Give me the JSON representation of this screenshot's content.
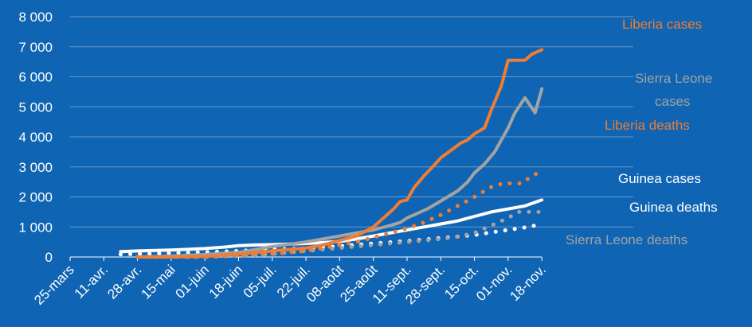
{
  "colors": {
    "background": "#0f64b3",
    "liberia_cases": "#ef7d33",
    "liberia_deaths": "#ef7d33",
    "sierra_leone_cases": "#a3a3a3",
    "sierra_leone_deaths": "#a3a3a3",
    "guinea_cases": "#ffffff",
    "guinea_deaths": "#ffffff",
    "grid": "#6b98c8",
    "text": "#ffffff"
  },
  "chart_data": {
    "type": "line",
    "title": "",
    "xlabel": "",
    "ylabel": "",
    "ylim": [
      0,
      8000
    ],
    "yticks": [
      0,
      1000,
      2000,
      3000,
      4000,
      5000,
      6000,
      7000,
      8000
    ],
    "ytick_labels": [
      "0",
      "1 000",
      "2 000",
      "3 000",
      "4 000",
      "5 000",
      "6 000",
      "7 000",
      "8 000"
    ],
    "x_categories": [
      "25-mars",
      "11-avr.",
      "28-avr.",
      "15-mai",
      "01-juin",
      "18-juin",
      "05-juil.",
      "22-juil.",
      "08-août",
      "25-août",
      "11-sept.",
      "28-sept.",
      "15-oct.",
      "01-nov.",
      "18-nov."
    ],
    "grid": true,
    "legend": "inline labels",
    "series": [
      {
        "name": "Liberia cases",
        "style": "solid",
        "color_key": "liberia_cases",
        "x": [
          2.0,
          3.0,
          4.0,
          5.0,
          6.0,
          7.0,
          7.5,
          8.0,
          8.5,
          9.0,
          9.3,
          9.6,
          9.8,
          10.0,
          10.2,
          10.5,
          10.8,
          11.0,
          11.3,
          11.6,
          11.8,
          12.0,
          12.3,
          12.5,
          12.8,
          13.0,
          13.2,
          13.5,
          13.7,
          14.0
        ],
        "y": [
          0,
          0,
          20,
          100,
          200,
          300,
          400,
          550,
          700,
          1000,
          1300,
          1600,
          1850,
          1900,
          2300,
          2700,
          3050,
          3300,
          3550,
          3800,
          3900,
          4100,
          4300,
          4900,
          5700,
          6550,
          6550,
          6550,
          6750,
          6900
        ],
        "label_value": "Liberia cases"
      },
      {
        "name": "Sierra Leone cases",
        "style": "solid",
        "color_key": "sierra_leone_cases",
        "x": [
          2.0,
          3.0,
          4.0,
          5.0,
          5.5,
          6.0,
          7.0,
          7.5,
          8.0,
          8.5,
          9.0,
          9.5,
          9.8,
          10.0,
          10.3,
          10.6,
          10.9,
          11.2,
          11.5,
          11.8,
          12.0,
          12.3,
          12.6,
          12.8,
          13.0,
          13.2,
          13.5,
          13.8,
          14.0
        ],
        "y": [
          0,
          30,
          80,
          150,
          250,
          350,
          500,
          600,
          700,
          800,
          900,
          1050,
          1150,
          1300,
          1450,
          1600,
          1800,
          2000,
          2200,
          2500,
          2800,
          3100,
          3500,
          3900,
          4300,
          4800,
          5300,
          4800,
          5600
        ],
        "label_value": "Sierra Leone cases"
      },
      {
        "name": "Liberia deaths",
        "style": "dotted",
        "color_key": "liberia_deaths",
        "x": [
          2.0,
          4.0,
          5.0,
          6.0,
          7.0,
          7.5,
          8.0,
          8.5,
          9.0,
          9.5,
          10.0,
          10.5,
          11.0,
          11.5,
          12.0,
          12.3,
          12.6,
          13.0,
          13.4,
          13.7,
          14.0
        ],
        "y": [
          0,
          0,
          50,
          100,
          200,
          300,
          400,
          500,
          650,
          800,
          950,
          1150,
          1400,
          1700,
          2000,
          2200,
          2400,
          2450,
          2450,
          2700,
          2850
        ],
        "label_value": "Liberia deaths"
      },
      {
        "name": "Guinea cases",
        "style": "solid",
        "color_key": "guinea_cases",
        "x": [
          1.5,
          2.0,
          3.0,
          4.0,
          4.6,
          5.0,
          5.5,
          6.0,
          6.5,
          7.0,
          7.5,
          8.0,
          8.5,
          9.0,
          9.5,
          10.0,
          10.5,
          11.0,
          11.5,
          12.0,
          12.5,
          13.0,
          13.5,
          14.0
        ],
        "y": [
          180,
          200,
          230,
          280,
          330,
          380,
          400,
          410,
          430,
          450,
          480,
          520,
          600,
          700,
          800,
          900,
          1000,
          1100,
          1200,
          1350,
          1500,
          1600,
          1700,
          1900
        ],
        "label_value": "Guinea cases"
      },
      {
        "name": "Guinea deaths",
        "style": "dotted",
        "color_key": "guinea_deaths",
        "x": [
          1.5,
          2.0,
          3.0,
          4.0,
          5.0,
          5.5,
          6.0,
          6.5,
          7.0,
          7.5,
          8.0,
          8.5,
          9.0,
          9.5,
          10.0,
          10.5,
          11.0,
          11.5,
          12.0,
          12.5,
          13.0,
          13.3,
          13.6,
          14.0
        ],
        "y": [
          90,
          100,
          130,
          160,
          200,
          230,
          250,
          270,
          290,
          320,
          360,
          400,
          450,
          490,
          530,
          580,
          630,
          680,
          730,
          820,
          900,
          950,
          1000,
          1100
        ],
        "label_value": "Guinea deaths"
      },
      {
        "name": "Sierra Leone deaths",
        "style": "dotted",
        "color_key": "sierra_leone_deaths",
        "x": [
          3.5,
          4.0,
          5.0,
          5.5,
          6.0,
          7.0,
          7.5,
          8.0,
          8.5,
          9.0,
          9.5,
          10.0,
          10.5,
          11.0,
          11.3,
          11.6,
          12.0,
          12.3,
          12.6,
          13.0,
          13.3,
          13.6,
          14.0
        ],
        "y": [
          0,
          10,
          30,
          60,
          100,
          200,
          250,
          300,
          350,
          400,
          450,
          500,
          550,
          600,
          650,
          700,
          800,
          950,
          1100,
          1300,
          1500,
          1500,
          1500
        ],
        "label_value": "Sierra Leone deaths"
      }
    ],
    "labels": {
      "liberia_cases": "Liberia cases",
      "sierra_leone_cases_line1": "Sierra Leone",
      "sierra_leone_cases_line2": "cases",
      "liberia_deaths": "Liberia deaths",
      "guinea_cases": "Guinea cases",
      "guinea_deaths": "Guinea deaths",
      "sierra_leone_deaths": "Sierra Leone deaths"
    }
  }
}
